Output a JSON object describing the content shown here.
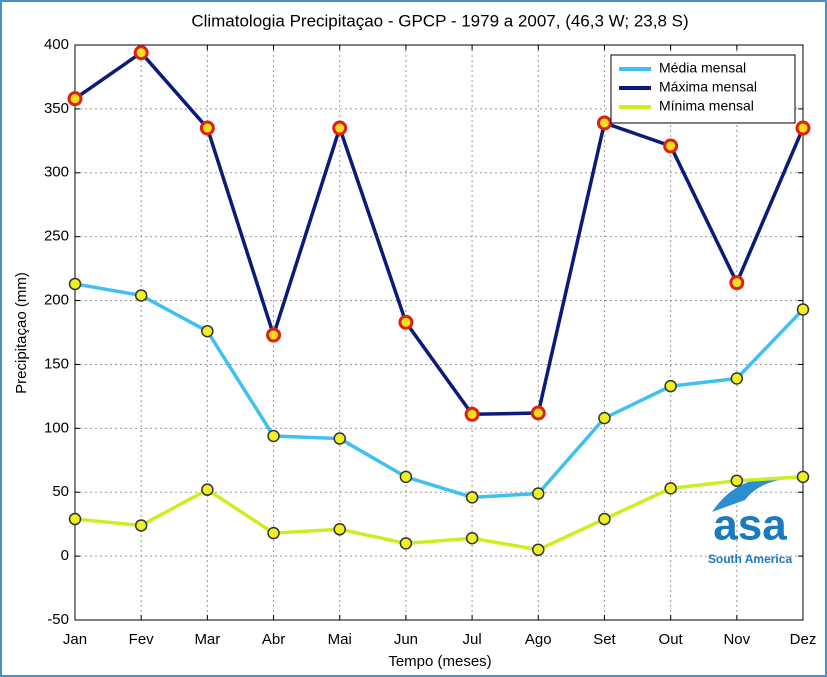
{
  "chart_data": {
    "type": "line",
    "title": "Climatologia Precipitaçao  - GPCP - 1979 a 2007, (46,3 W; 23,8 S)",
    "xlabel": "Tempo (meses)",
    "ylabel": "Precipitaçao (mm)",
    "categories": [
      "Jan",
      "Fev",
      "Mar",
      "Abr",
      "Mai",
      "Jun",
      "Jul",
      "Ago",
      "Set",
      "Out",
      "Nov",
      "Dez"
    ],
    "series": [
      {
        "name": "Média mensal",
        "color": "#3fc0f0",
        "values": [
          213,
          204,
          176,
          94,
          92,
          62,
          46,
          49,
          108,
          133,
          139,
          193
        ]
      },
      {
        "name": "Máxima mensal",
        "color": "#0c1a7a",
        "values": [
          358,
          394,
          335,
          173,
          335,
          183,
          111,
          112,
          339,
          321,
          214,
          335
        ]
      },
      {
        "name": "Mínima mensal",
        "color": "#c8f020",
        "values": [
          29,
          24,
          52,
          18,
          21,
          10,
          14,
          5,
          29,
          53,
          59,
          62
        ]
      }
    ],
    "ylim": [
      -50,
      400
    ],
    "yticks": [
      -50,
      0,
      50,
      100,
      150,
      200,
      250,
      300,
      350,
      400
    ],
    "grid": true,
    "legend": "upper right"
  },
  "logo": {
    "text": "asa",
    "subtext": "South America"
  }
}
